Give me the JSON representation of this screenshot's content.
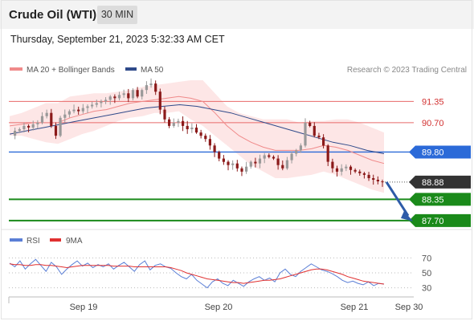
{
  "header": {
    "title": "Crude Oil (WTI)",
    "timeframe": "30 MIN"
  },
  "subtitle": "Thursday, September 21, 2023 5:32:33 AM CET",
  "legend": {
    "ma20": "MA 20 + Bollinger Bands",
    "ma50": "MA 50",
    "copyright": "Research © 2023 Trading Central"
  },
  "rsi_legend": {
    "rsi": "RSI",
    "ma": "9MA"
  },
  "colors": {
    "ma20": "#f08a8a",
    "ma50": "#2f4a8a",
    "band": "#fde2e2",
    "up": "#999999",
    "down": "#8b1a1a",
    "resistance": "#e86a6a",
    "pivot": "#2b6ad8",
    "support": "#1a8a1a",
    "last": "#333333",
    "rsi": "#5b7fd6",
    "rsi_ma": "#e03030",
    "arrow": "#2e5ba8"
  },
  "chart_data": {
    "type": "candlestick",
    "price_range": [
      87.45,
      92.0
    ],
    "x_ticks": [
      "Sep 19",
      "Sep 20",
      "Sep 21",
      "Sep 30"
    ],
    "levels": [
      {
        "value": 91.35,
        "label": "91.35",
        "kind": "resistance"
      },
      {
        "value": 90.7,
        "label": "90.70",
        "kind": "resistance"
      },
      {
        "value": 89.8,
        "label": "89.80",
        "kind": "pivot"
      },
      {
        "value": 88.88,
        "label": "88.88",
        "kind": "last"
      },
      {
        "value": 88.35,
        "label": "88.35",
        "kind": "support"
      },
      {
        "value": 87.7,
        "label": "87.70",
        "kind": "support"
      }
    ],
    "price_path": [
      90.3,
      90.45,
      90.5,
      90.6,
      90.55,
      90.65,
      90.7,
      90.9,
      91.0,
      90.6,
      90.3,
      90.85,
      90.95,
      91.05,
      91.1,
      91.05,
      91.15,
      91.2,
      91.25,
      91.3,
      91.35,
      91.4,
      91.5,
      91.45,
      91.55,
      91.6,
      91.45,
      91.7,
      91.5,
      91.7,
      91.85,
      91.9,
      91.65,
      91.1,
      90.8,
      90.6,
      90.7,
      90.75,
      90.6,
      90.5,
      90.55,
      90.4,
      90.3,
      90.2,
      90.0,
      89.8,
      89.6,
      89.5,
      89.4,
      89.45,
      89.3,
      89.2,
      89.35,
      89.5,
      89.45,
      89.6,
      89.7,
      89.65,
      89.6,
      89.4,
      89.3,
      89.55,
      89.75,
      89.85,
      90.0,
      90.7,
      90.6,
      90.3,
      90.25,
      90.0,
      89.5,
      89.3,
      89.2,
      89.3,
      89.35,
      89.25,
      89.2,
      89.15,
      89.1,
      89.0,
      88.95,
      88.9,
      88.88
    ],
    "bollinger": {
      "upper": [
        90.9,
        91.0,
        91.15,
        91.3,
        91.3,
        91.5,
        91.55,
        91.6,
        91.6,
        91.65,
        91.7,
        91.8,
        91.85,
        91.9,
        91.95,
        92.0,
        92.0,
        91.6,
        91.2,
        91.0,
        90.9,
        90.8,
        90.8,
        90.8,
        90.7,
        90.75,
        90.75,
        90.8,
        90.8,
        90.7,
        90.55,
        90.4
      ],
      "lower": [
        90.3,
        90.3,
        90.2,
        90.1,
        90.05,
        90.2,
        90.35,
        90.45,
        90.6,
        90.75,
        90.85,
        90.9,
        91.0,
        91.0,
        91.05,
        90.8,
        90.6,
        90.3,
        90.0,
        89.7,
        89.4,
        89.2,
        89.0,
        89.0,
        89.05,
        89.1,
        89.2,
        89.1,
        88.95,
        88.8,
        88.65,
        88.55
      ]
    },
    "ma20": [
      90.6,
      90.65,
      90.7,
      90.7,
      90.7,
      90.85,
      90.95,
      91.05,
      91.1,
      91.2,
      91.3,
      91.35,
      91.4,
      91.45,
      91.5,
      91.45,
      91.35,
      91.0,
      90.6,
      90.3,
      90.1,
      89.95,
      89.85,
      89.85,
      89.85,
      89.9,
      90.0,
      89.95,
      89.85,
      89.7,
      89.55,
      89.45
    ],
    "ma50": [
      90.35,
      90.45,
      90.55,
      90.65,
      90.75,
      90.85,
      90.95,
      91.05,
      91.15,
      91.2,
      91.25,
      91.2,
      91.1,
      91.0,
      90.85,
      90.7,
      90.55,
      90.4,
      90.25,
      90.1,
      90.0,
      89.85,
      89.75
    ],
    "forecast": {
      "from": 88.88,
      "to": 87.7
    },
    "rsi": {
      "levels": [
        70,
        50,
        30
      ],
      "range": [
        20,
        80
      ],
      "values": [
        63,
        58,
        66,
        55,
        62,
        68,
        60,
        52,
        64,
        58,
        48,
        55,
        61,
        66,
        59,
        63,
        57,
        61,
        58,
        62,
        55,
        60,
        64,
        58,
        52,
        61,
        66,
        54,
        60,
        62,
        58,
        56,
        50,
        45,
        42,
        48,
        40,
        35,
        30,
        38,
        42,
        36,
        33,
        40,
        36,
        32,
        38,
        42,
        45,
        40,
        43,
        38,
        50,
        55,
        48,
        45,
        52,
        57,
        62,
        58,
        54,
        52,
        49,
        45,
        40,
        37,
        39,
        36,
        34,
        38,
        33,
        36,
        35
      ],
      "ma": [
        62,
        61,
        61,
        60,
        60,
        61,
        61,
        60,
        60,
        59,
        58,
        57,
        58,
        59,
        60,
        60,
        60,
        60,
        60,
        60,
        59,
        59,
        59,
        59,
        58,
        58,
        58,
        58,
        58,
        58,
        58,
        57,
        55,
        53,
        50,
        48,
        46,
        44,
        42,
        41,
        40,
        39,
        38,
        37,
        37,
        36,
        37,
        38,
        39,
        40,
        40,
        41,
        42,
        44,
        46,
        48,
        50,
        52,
        54,
        55,
        55,
        54,
        52,
        50,
        48,
        45,
        43,
        41,
        39,
        38,
        37,
        36,
        35
      ]
    }
  }
}
